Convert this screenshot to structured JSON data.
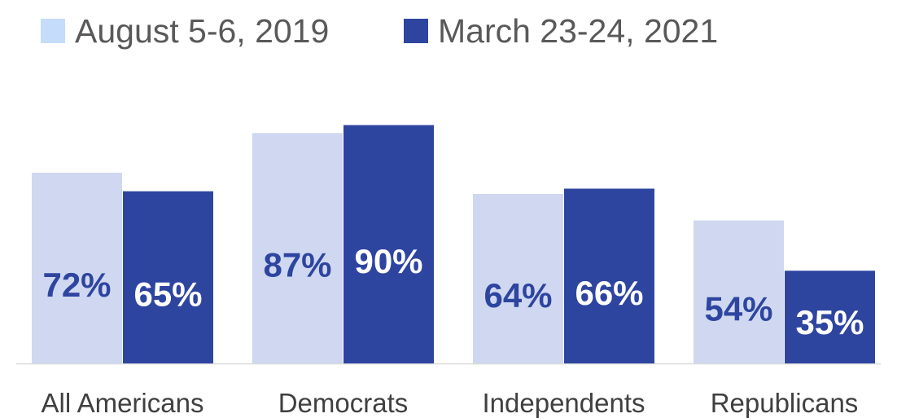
{
  "chart_data": {
    "type": "bar",
    "title": "",
    "xlabel": "",
    "ylabel": "",
    "ylim": [
      0,
      100
    ],
    "grid": false,
    "legend_position": "top-left",
    "categories": [
      "All Americans",
      "Democrats",
      "Independents",
      "Republicans"
    ],
    "series": [
      {
        "name": "August 5-6, 2019",
        "color": "#cfd8f0",
        "values": [
          72,
          87,
          64,
          54
        ],
        "labels": [
          "72%",
          "87%",
          "64%",
          "54%"
        ]
      },
      {
        "name": "March 23-24, 2021",
        "color": "#2e45a0",
        "values": [
          65,
          90,
          66,
          35
        ],
        "labels": [
          "65%",
          "90%",
          "66%",
          "35%"
        ]
      }
    ]
  },
  "colors": {
    "legend_swatch_2019": "#c5dcfa",
    "label_on_light": "#2e45a0",
    "label_on_dark": "#ffffff",
    "axis_line": "#d9d9d9",
    "category_text": "#404040"
  }
}
